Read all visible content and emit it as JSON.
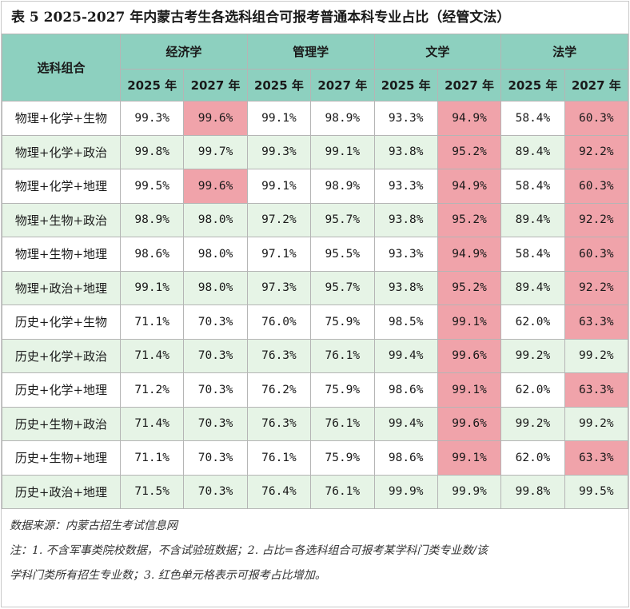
{
  "title": "表 5 2025-2027 年内蒙古考生各选科组合可报考普通本科专业占比（经管文法）",
  "header": {
    "combo_label": "选科组合",
    "subjects": [
      "经济学",
      "管理学",
      "文学",
      "法学"
    ],
    "years": [
      "2025 年",
      "2027 年"
    ]
  },
  "highlight_color": "#f0a3aa",
  "rows": [
    {
      "combo": "物理+化学+生物",
      "values": [
        "99.3%",
        "99.6%",
        "99.1%",
        "98.9%",
        "93.3%",
        "94.9%",
        "58.4%",
        "60.3%"
      ],
      "increased": [
        false,
        true,
        false,
        false,
        false,
        true,
        false,
        true
      ]
    },
    {
      "combo": "物理+化学+政治",
      "values": [
        "99.8%",
        "99.7%",
        "99.3%",
        "99.1%",
        "93.8%",
        "95.2%",
        "89.4%",
        "92.2%"
      ],
      "increased": [
        false,
        false,
        false,
        false,
        false,
        true,
        false,
        true
      ]
    },
    {
      "combo": "物理+化学+地理",
      "values": [
        "99.5%",
        "99.6%",
        "99.1%",
        "98.9%",
        "93.3%",
        "94.9%",
        "58.4%",
        "60.3%"
      ],
      "increased": [
        false,
        true,
        false,
        false,
        false,
        true,
        false,
        true
      ]
    },
    {
      "combo": "物理+生物+政治",
      "values": [
        "98.9%",
        "98.0%",
        "97.2%",
        "95.7%",
        "93.8%",
        "95.2%",
        "89.4%",
        "92.2%"
      ],
      "increased": [
        false,
        false,
        false,
        false,
        false,
        true,
        false,
        true
      ]
    },
    {
      "combo": "物理+生物+地理",
      "values": [
        "98.6%",
        "98.0%",
        "97.1%",
        "95.5%",
        "93.3%",
        "94.9%",
        "58.4%",
        "60.3%"
      ],
      "increased": [
        false,
        false,
        false,
        false,
        false,
        true,
        false,
        true
      ]
    },
    {
      "combo": "物理+政治+地理",
      "values": [
        "99.1%",
        "98.0%",
        "97.3%",
        "95.7%",
        "93.8%",
        "95.2%",
        "89.4%",
        "92.2%"
      ],
      "increased": [
        false,
        false,
        false,
        false,
        false,
        true,
        false,
        true
      ]
    },
    {
      "combo": "历史+化学+生物",
      "values": [
        "71.1%",
        "70.3%",
        "76.0%",
        "75.9%",
        "98.5%",
        "99.1%",
        "62.0%",
        "63.3%"
      ],
      "increased": [
        false,
        false,
        false,
        false,
        false,
        true,
        false,
        true
      ]
    },
    {
      "combo": "历史+化学+政治",
      "values": [
        "71.4%",
        "70.3%",
        "76.3%",
        "76.1%",
        "99.4%",
        "99.6%",
        "99.2%",
        "99.2%"
      ],
      "increased": [
        false,
        false,
        false,
        false,
        false,
        true,
        false,
        false
      ]
    },
    {
      "combo": "历史+化学+地理",
      "values": [
        "71.2%",
        "70.3%",
        "76.2%",
        "75.9%",
        "98.6%",
        "99.1%",
        "62.0%",
        "63.3%"
      ],
      "increased": [
        false,
        false,
        false,
        false,
        false,
        true,
        false,
        true
      ]
    },
    {
      "combo": "历史+生物+政治",
      "values": [
        "71.4%",
        "70.3%",
        "76.3%",
        "76.1%",
        "99.4%",
        "99.6%",
        "99.2%",
        "99.2%"
      ],
      "increased": [
        false,
        false,
        false,
        false,
        false,
        true,
        false,
        false
      ]
    },
    {
      "combo": "历史+生物+地理",
      "values": [
        "71.1%",
        "70.3%",
        "76.1%",
        "75.9%",
        "98.6%",
        "99.1%",
        "62.0%",
        "63.3%"
      ],
      "increased": [
        false,
        false,
        false,
        false,
        false,
        true,
        false,
        true
      ]
    },
    {
      "combo": "历史+政治+地理",
      "values": [
        "71.5%",
        "70.3%",
        "76.4%",
        "76.1%",
        "99.9%",
        "99.9%",
        "99.8%",
        "99.5%"
      ],
      "increased": [
        false,
        false,
        false,
        false,
        false,
        false,
        false,
        false
      ]
    }
  ],
  "notes": {
    "source": "数据来源：内蒙古招生考试信息网",
    "line1": "注：1. 不含军事类院校数据，不含试验班数据；2. 占比=各选科组合可报考某学科门类专业数/该",
    "line2": "学科门类所有招生专业数；3. 红色单元格表示可报考占比增加。"
  }
}
